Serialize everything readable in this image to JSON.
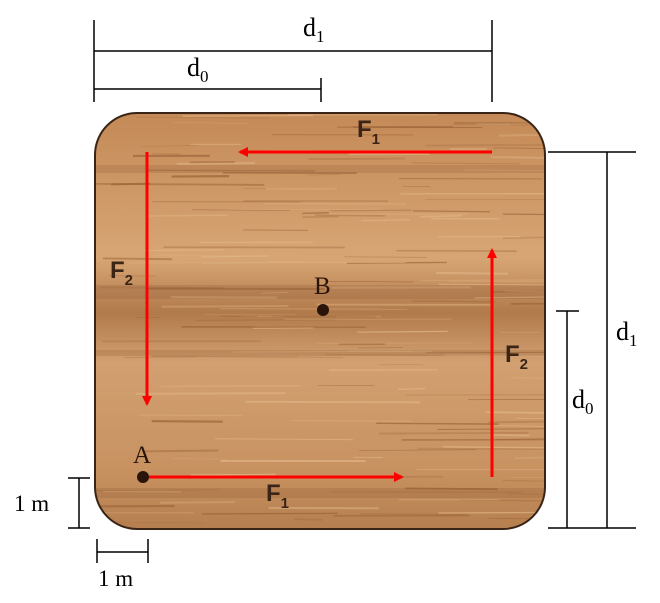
{
  "dimensions": {
    "top_d1": {
      "base": "d",
      "sub": "1"
    },
    "top_d0": {
      "base": "d",
      "sub": "0"
    },
    "right_d1": {
      "base": "d",
      "sub": "1"
    },
    "right_d0": {
      "base": "d",
      "sub": "0"
    },
    "left_unit": "1 m",
    "bottom_unit": "1 m"
  },
  "forces": {
    "top": {
      "base": "F",
      "sub": "1"
    },
    "bottom": {
      "base": "F",
      "sub": "1"
    },
    "left": {
      "base": "F",
      "sub": "2"
    },
    "right": {
      "base": "F",
      "sub": "2"
    }
  },
  "points": {
    "a": "A",
    "b": "B"
  },
  "colors": {
    "arrow": "#ff0000",
    "wood_light": "#d09a63",
    "wood_dark": "#8a5630",
    "outline": "#3a2416"
  }
}
